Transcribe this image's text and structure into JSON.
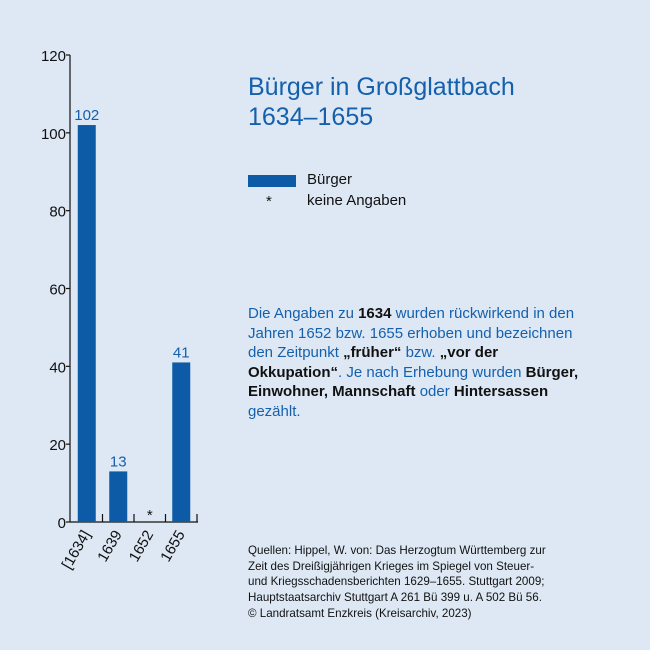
{
  "title_lines": [
    "Bürger in Großglattbach",
    "1634–1655"
  ],
  "legend": {
    "series_label": "Bürger",
    "star_symbol": "*",
    "star_label": "keine Angaben"
  },
  "note": {
    "p1": "Die Angaben zu ",
    "b1": "1634",
    "p2": " wurden rückwirkend in den Jahren 1652 bzw. 1655 erhoben und bezeichnen den Zeitpunkt ",
    "b2": "„früher“",
    "p3": " bzw. ",
    "b3": "„vor der Okkupation“",
    "p4": ". Je nach Erhebung wurden ",
    "b4": "Bürger, Einwohner, Mannschaft",
    "p5": " oder ",
    "b5": "Hintersassen",
    "p6": " gezählt."
  },
  "sources_lines": [
    "Quellen: Hippel, W. von: Das Herzogtum Württemberg zur",
    "Zeit des Dreißigjährigen Krieges im Spiegel von Steuer-",
    "und Kriegsschadensberichten 1629–1655. Stuttgart 2009;",
    "Hauptstaatsarchiv Stuttgart A 261 Bü 399 u. A 502 Bü 56.",
    "© Landratsamt Enzkreis (Kreisarchiv, 2023)"
  ],
  "colors": {
    "bar": "#0d5aa7",
    "value_label": "#1560ad",
    "background": "#dde8f4",
    "axis": "#111111"
  },
  "chart_data": {
    "type": "bar",
    "categories": [
      "[1634]",
      "1639",
      "1652",
      "1655"
    ],
    "values": [
      102,
      13,
      null,
      41
    ],
    "value_labels": [
      "102",
      "13",
      "*",
      "41"
    ],
    "title": "Bürger in Großglattbach 1634–1655",
    "xlabel": "",
    "ylabel": "",
    "ylim": [
      0,
      120
    ],
    "yticks": [
      0,
      20,
      40,
      60,
      80,
      100,
      120
    ],
    "grid": false,
    "legend": "right"
  }
}
